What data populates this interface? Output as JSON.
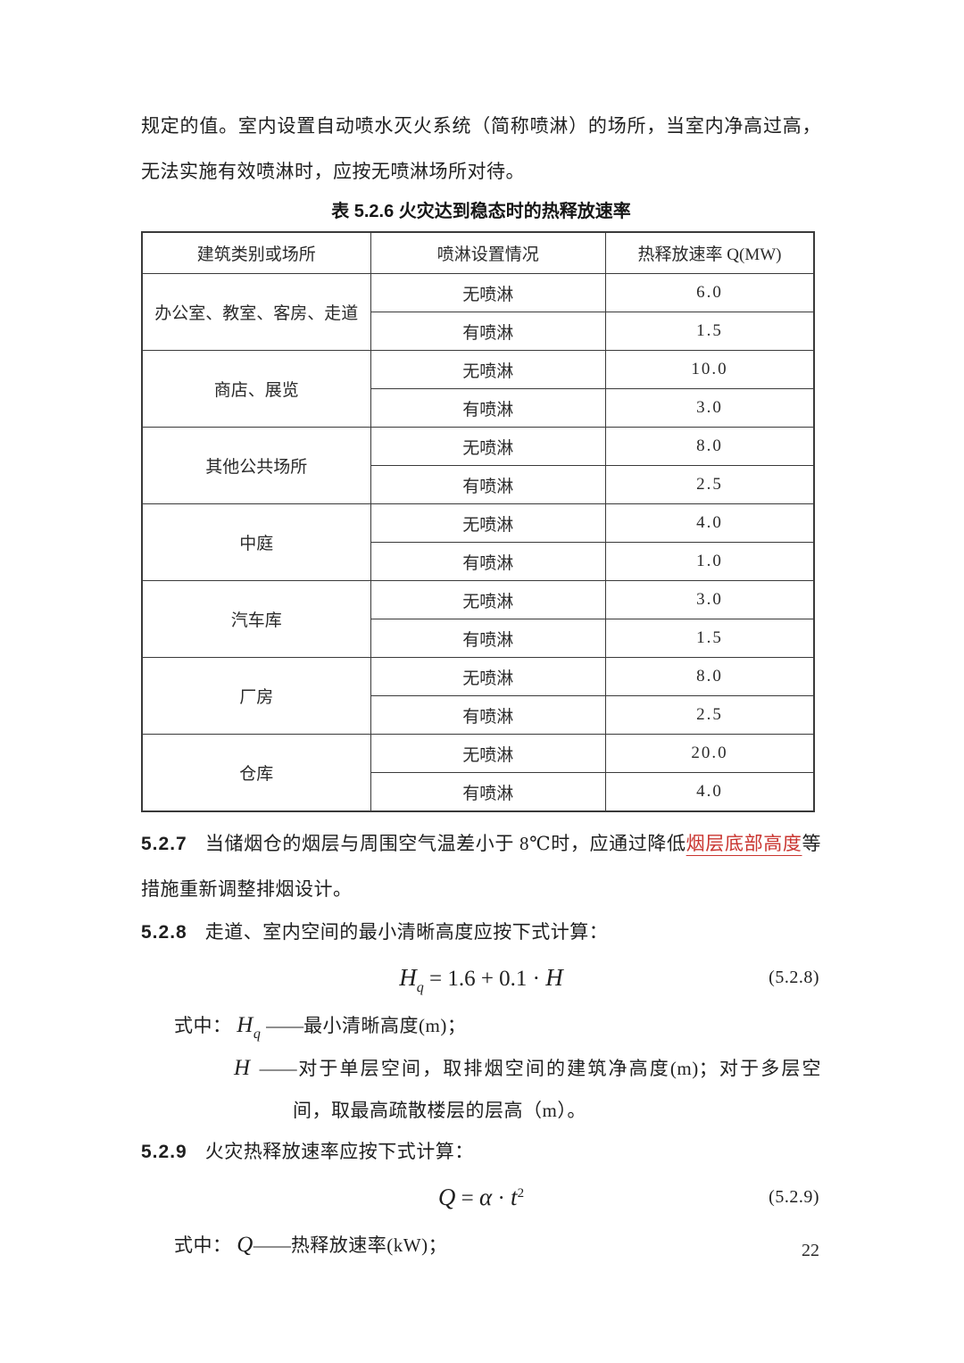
{
  "page": {
    "number": "22",
    "background_color": "#ffffff",
    "text_color": "#1f1f1f",
    "accent_red": "#c9342f"
  },
  "intro": {
    "text": "规定的值。室内设置自动喷水灭火系统（简称喷淋）的场所，当室内净高过高，无法实施有效喷淋时，应按无喷淋场所对待。"
  },
  "table": {
    "title": "表 5.2.6 火灾达到稳态时的热释放速率",
    "headers": [
      "建筑类别或场所",
      "喷淋设置情况",
      "热释放速率 Q(MW)"
    ],
    "rows": [
      {
        "category": "办公室、教室、客房、走道",
        "sub": [
          {
            "sprinkler": "无喷淋",
            "q": "6.0"
          },
          {
            "sprinkler": "有喷淋",
            "q": "1.5"
          }
        ]
      },
      {
        "category": "商店、展览",
        "sub": [
          {
            "sprinkler": "无喷淋",
            "q": "10.0"
          },
          {
            "sprinkler": "有喷淋",
            "q": "3.0"
          }
        ]
      },
      {
        "category": "其他公共场所",
        "sub": [
          {
            "sprinkler": "无喷淋",
            "q": "8.0"
          },
          {
            "sprinkler": "有喷淋",
            "q": "2.5"
          }
        ]
      },
      {
        "category": "中庭",
        "sub": [
          {
            "sprinkler": "无喷淋",
            "q": "4.0"
          },
          {
            "sprinkler": "有喷淋",
            "q": "1.0"
          }
        ]
      },
      {
        "category": "汽车库",
        "sub": [
          {
            "sprinkler": "无喷淋",
            "q": "3.0"
          },
          {
            "sprinkler": "有喷淋",
            "q": "1.5"
          }
        ]
      },
      {
        "category": "厂房",
        "sub": [
          {
            "sprinkler": "无喷淋",
            "q": "8.0"
          },
          {
            "sprinkler": "有喷淋",
            "q": "2.5"
          }
        ]
      },
      {
        "category": "仓库",
        "sub": [
          {
            "sprinkler": "无喷淋",
            "q": "20.0"
          },
          {
            "sprinkler": "有喷淋",
            "q": "4.0"
          }
        ]
      }
    ]
  },
  "s527": {
    "number": "5.2.7",
    "before_red": "当储烟仓的烟层与周围空气温差小于 8℃时，应通过降低",
    "red": "烟层底部高度",
    "after_red": "等措施重新调整排烟设计。"
  },
  "s528": {
    "number": "5.2.8",
    "intro": "走道、室内空间的最小清晰高度应按下式计算：",
    "formula": {
      "var1": "H",
      "sub1": "q",
      "eq": " = 1.6 + 0.1 · ",
      "var2": "H",
      "label": "(5.2.8)"
    },
    "where_label": "式中：",
    "term1": {
      "var": "H",
      "sub": "q",
      "dash": "——",
      "desc": "最小清晰高度(m)；"
    },
    "term2": {
      "var": "H",
      "dash": "——",
      "desc": "对于单层空间，取排烟空间的建筑净高度(m)；对于多层空间，取最高疏散楼层的层高（m）。"
    }
  },
  "s529": {
    "number": "5.2.9",
    "intro": "火灾热释放速率应按下式计算：",
    "formula": {
      "var1": "Q",
      "eq": " = ",
      "alpha": "α",
      "dot": " · ",
      "var2": "t",
      "sup": "2",
      "label": "(5.2.9)"
    },
    "where_label": "式中：",
    "term1": {
      "var": "Q",
      "dash": "——",
      "desc": "热释放速率(kW)；"
    }
  }
}
